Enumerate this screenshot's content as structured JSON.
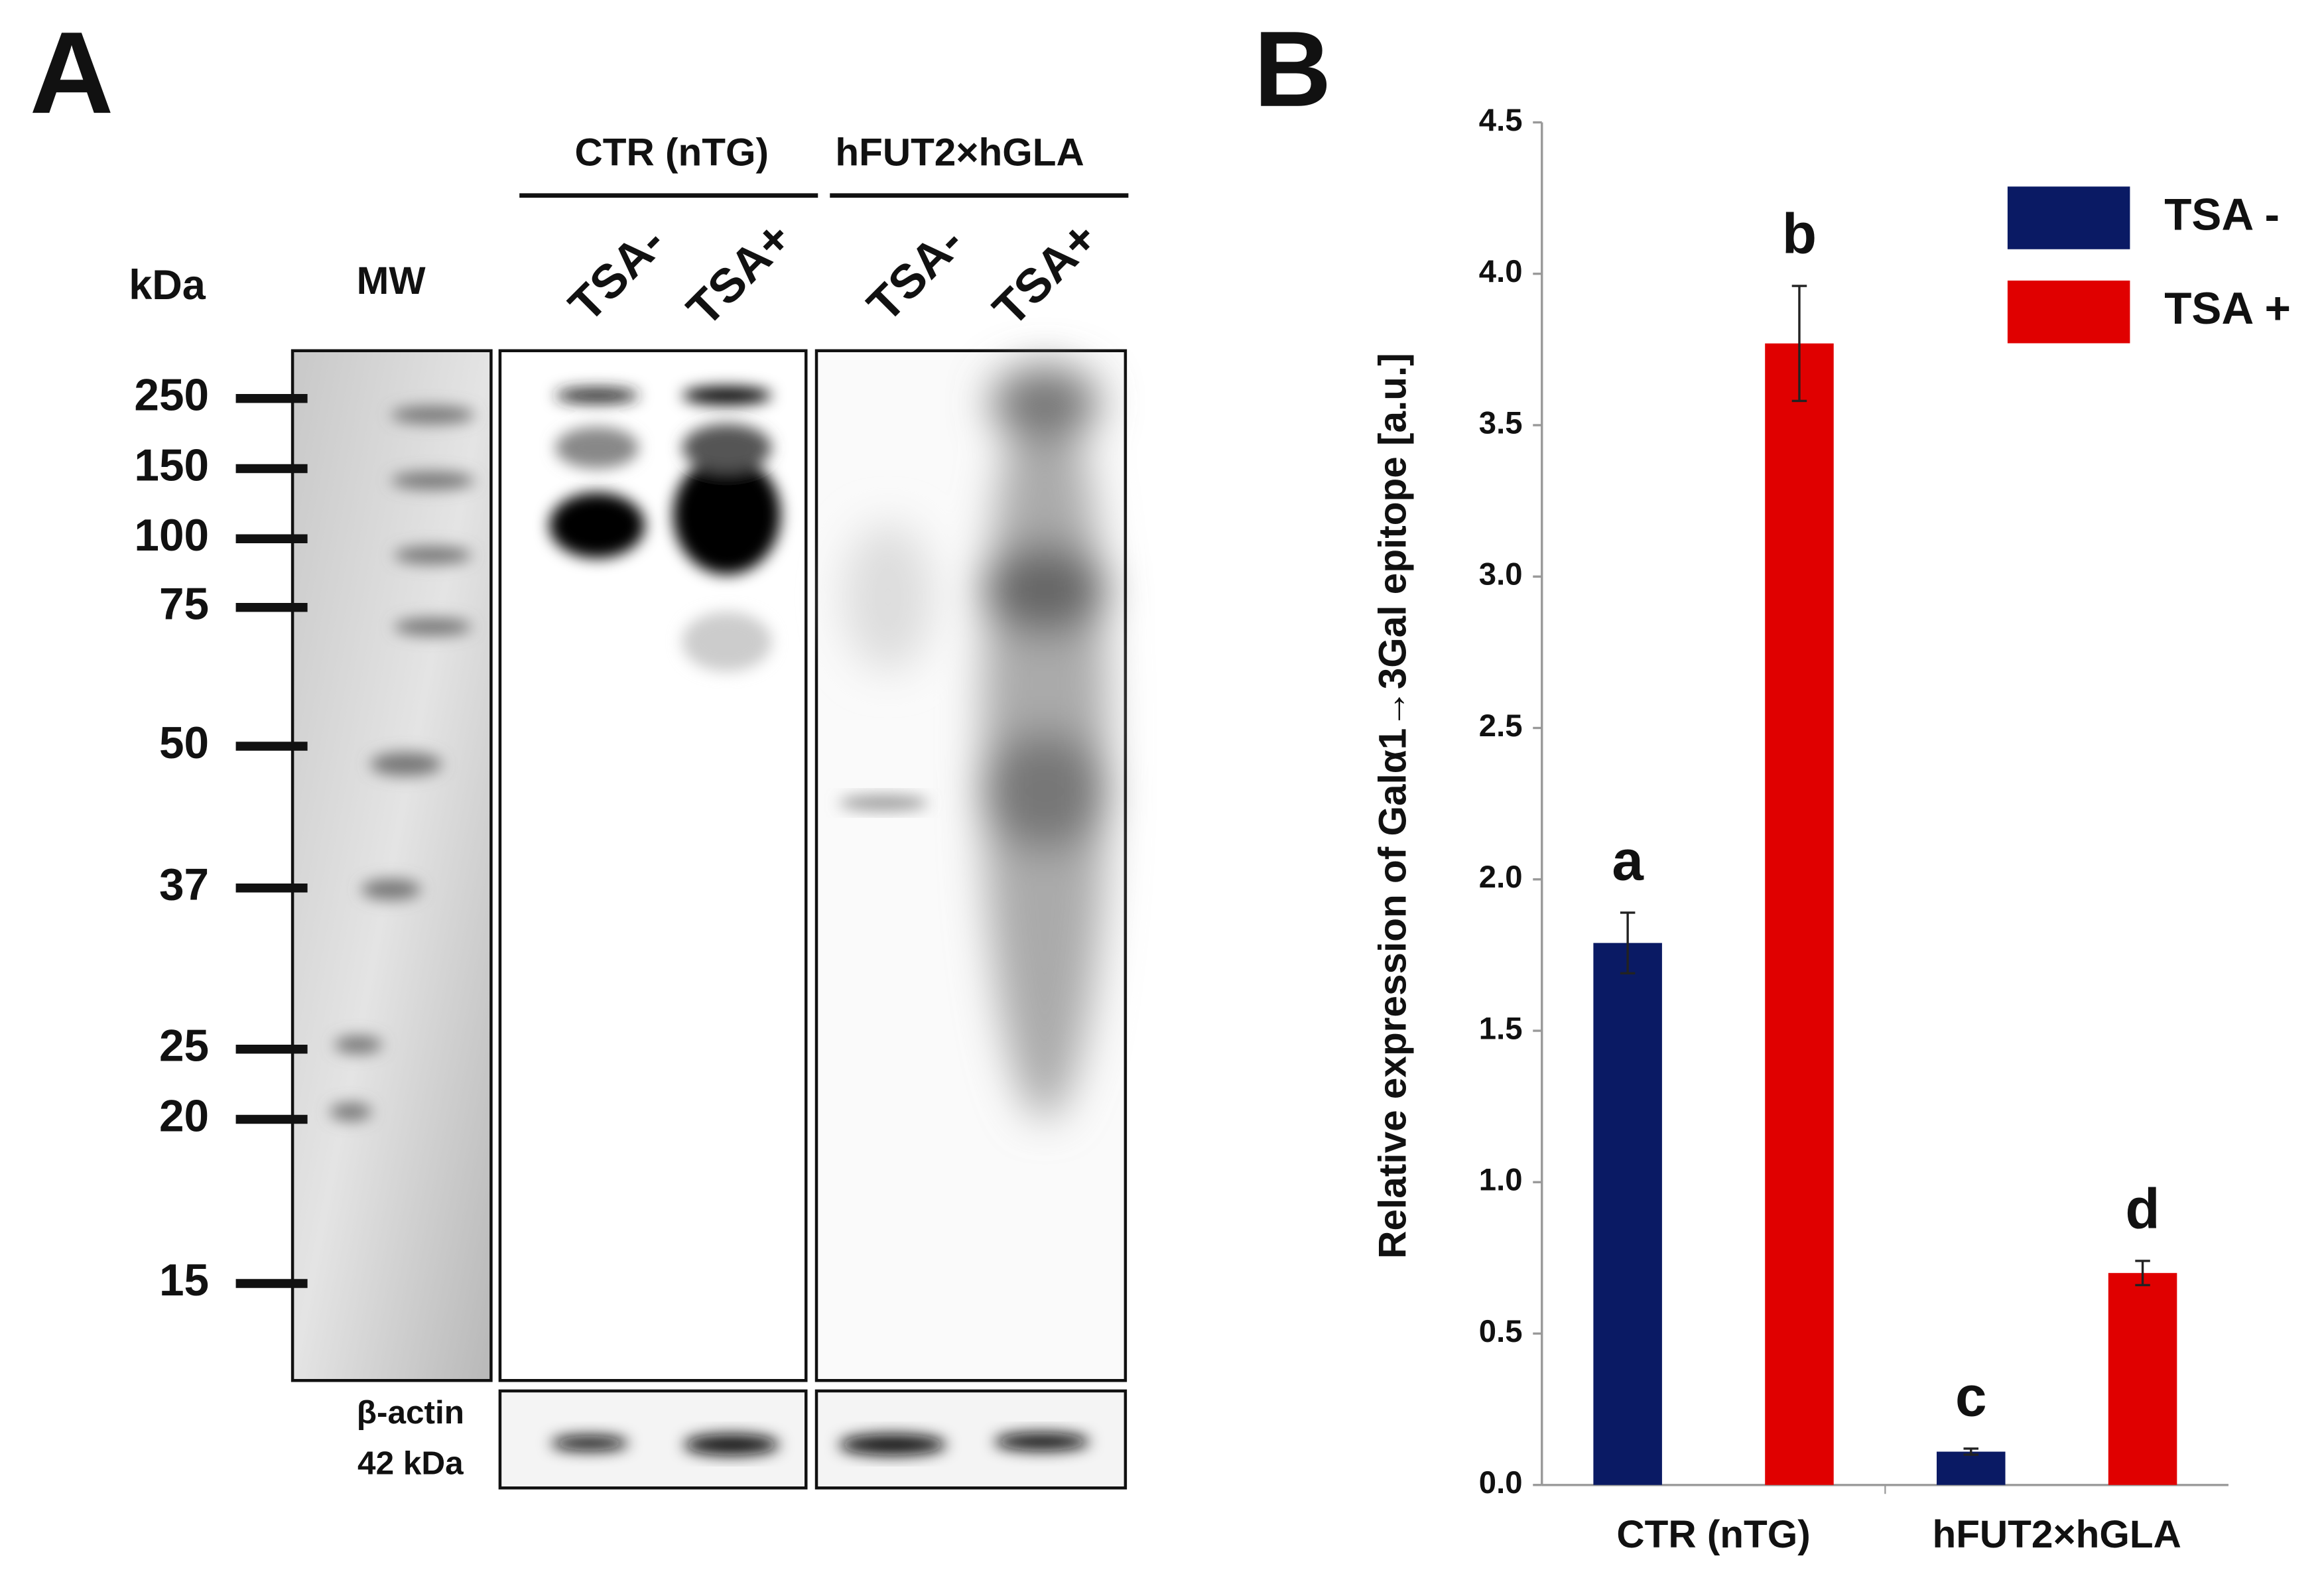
{
  "panel_a": {
    "letter": "A",
    "groups": [
      "CTR (nTG)",
      "hFUT2×hGLA"
    ],
    "lanes": [
      "TSA-",
      "TSA+",
      "TSA-",
      "TSA+"
    ],
    "kda_label": "kDa",
    "mw_label": "MW",
    "markers": [
      "250",
      "150",
      "100",
      "75",
      "50",
      "37",
      "25",
      "20",
      "15"
    ],
    "actin_label": "β-actin",
    "actin_kda": "42 kDa"
  },
  "chart_data": {
    "type": "bar",
    "panel_letter": "B",
    "y_label": "Relative expression of Galα1→3Gal epitope [a.u.]",
    "categories": [
      "CTR (nTG)",
      "hFUT2×hGLA"
    ],
    "series": [
      {
        "name": "TSA -",
        "color": "#0a1a64",
        "values": [
          1.79,
          0.11
        ],
        "errors": [
          0.1,
          0.01
        ],
        "letters": [
          "a",
          "c"
        ]
      },
      {
        "name": "TSA +",
        "color": "#e00000",
        "values": [
          3.77,
          0.7
        ],
        "errors": [
          0.19,
          0.04
        ],
        "letters": [
          "b",
          "d"
        ]
      }
    ],
    "ylim": [
      0,
      4.5
    ],
    "yticks": [
      {
        "value": 0,
        "label": "0.0"
      },
      0.5,
      {
        "value": 1,
        "label": "1.0"
      },
      1.5,
      {
        "value": 2,
        "label": "2.0"
      },
      2.5,
      {
        "value": 3,
        "label": "3.0"
      },
      3.5,
      {
        "value": 4,
        "label": "4.0"
      },
      4.5
    ],
    "legend": "top-right"
  }
}
